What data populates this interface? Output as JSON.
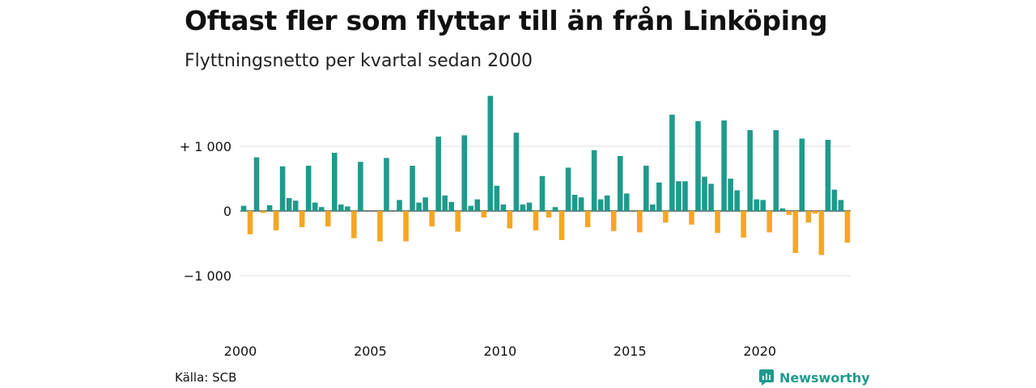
{
  "chart_data": {
    "type": "bar",
    "title": "Oftast fler som flyttar till än från Linköping",
    "subtitle": "Flyttningsnetto per kvartal sedan 2000",
    "x_start_year": 2000,
    "values": [
      80,
      -360,
      830,
      -30,
      90,
      -300,
      690,
      200,
      160,
      -250,
      700,
      130,
      60,
      -240,
      900,
      100,
      70,
      -420,
      760,
      0,
      0,
      -470,
      820,
      0,
      170,
      -470,
      700,
      130,
      210,
      -240,
      1150,
      240,
      140,
      -320,
      1170,
      80,
      180,
      -100,
      1780,
      390,
      100,
      -270,
      1210,
      100,
      130,
      -300,
      540,
      -100,
      60,
      -450,
      670,
      250,
      210,
      -250,
      940,
      180,
      240,
      -310,
      850,
      270,
      0,
      -330,
      700,
      100,
      440,
      -180,
      1490,
      460,
      460,
      -210,
      1390,
      530,
      420,
      -340,
      1400,
      500,
      320,
      -410,
      1250,
      180,
      170,
      -330,
      1250,
      40,
      -60,
      -650,
      1120,
      -180,
      -40,
      -680,
      1100,
      330,
      170,
      -490
    ],
    "x_ticks": [
      "2000",
      "2005",
      "2010",
      "2015",
      "2020"
    ],
    "y_ticks": [
      {
        "value": 1000,
        "label": "+ 1 000"
      },
      {
        "value": 0,
        "label": "0"
      },
      {
        "value": -1000,
        "label": "−1 000"
      }
    ],
    "ylim": [
      -1450,
      1850
    ],
    "colors": {
      "positive": "#1f9a8c",
      "negative": "#f5a623",
      "grid": "#dddddd",
      "zero_line": "#333333"
    },
    "grid": true
  },
  "footer": {
    "source": "Källa: SCB",
    "brand": "Newsworthy",
    "brand_icon": "newsworthy-logo-icon",
    "brand_color": "#1f9a8c"
  }
}
